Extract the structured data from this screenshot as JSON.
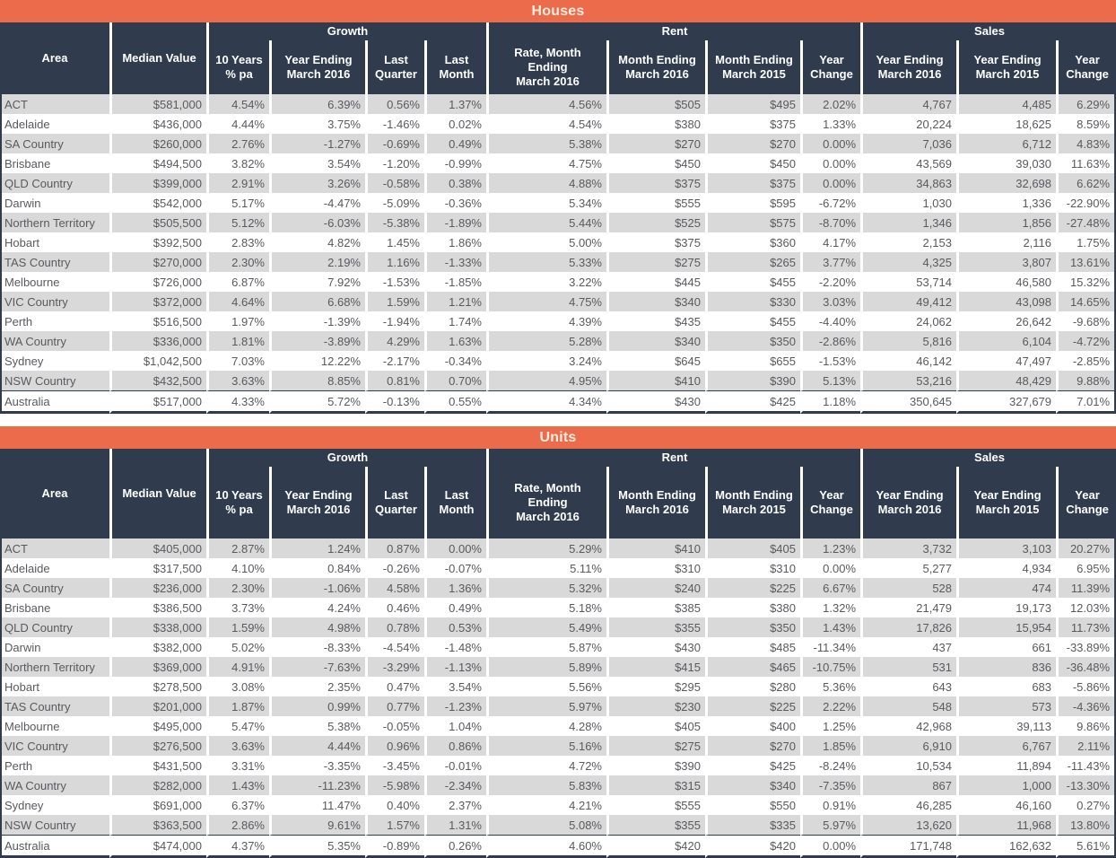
{
  "colors": {
    "accent_orange": "#EC6B4A",
    "header_dark": "#303C4E",
    "row_stripe": "#D9D9D9",
    "body_text": "#585A5E",
    "title_text": "#FAEDE0"
  },
  "tables": [
    {
      "title": "Houses",
      "groups": [
        {
          "label": "Growth",
          "colspan": 4
        },
        {
          "label": "Rent",
          "colspan": 4
        },
        {
          "label": "Sales",
          "colspan": 3
        }
      ],
      "columns": [
        "Area",
        "Median Value",
        "10 Years\n% pa",
        "Year Ending\nMarch 2016",
        "Last\nQuarter",
        "Last\nMonth",
        "Rate, Month\nEnding\nMarch 2016",
        "Month Ending\nMarch 2016",
        "Month Ending\nMarch 2015",
        "Year\nChange",
        "Year Ending\nMarch 2016",
        "Year Ending\nMarch 2015",
        "Year\nChange"
      ],
      "rows": [
        [
          "ACT",
          "$581,000",
          "4.54%",
          "6.39%",
          "0.56%",
          "1.37%",
          "4.56%",
          "$505",
          "$495",
          "2.02%",
          "4,767",
          "4,485",
          "6.29%"
        ],
        [
          "Adelaide",
          "$436,000",
          "4.44%",
          "3.75%",
          "-1.46%",
          "0.02%",
          "4.54%",
          "$380",
          "$375",
          "1.33%",
          "20,224",
          "18,625",
          "8.59%"
        ],
        [
          "SA Country",
          "$260,000",
          "2.76%",
          "-1.27%",
          "-0.69%",
          "0.49%",
          "5.38%",
          "$270",
          "$270",
          "0.00%",
          "7,036",
          "6,712",
          "4.83%"
        ],
        [
          "Brisbane",
          "$494,500",
          "3.82%",
          "3.54%",
          "-1.20%",
          "-0.99%",
          "4.75%",
          "$450",
          "$450",
          "0.00%",
          "43,569",
          "39,030",
          "11.63%"
        ],
        [
          "QLD Country",
          "$399,000",
          "2.91%",
          "3.26%",
          "-0.58%",
          "0.38%",
          "4.88%",
          "$375",
          "$375",
          "0.00%",
          "34,863",
          "32,698",
          "6.62%"
        ],
        [
          "Darwin",
          "$542,000",
          "5.17%",
          "-4.47%",
          "-5.09%",
          "-0.36%",
          "5.34%",
          "$555",
          "$595",
          "-6.72%",
          "1,030",
          "1,336",
          "-22.90%"
        ],
        [
          "Northern Territory",
          "$505,500",
          "5.12%",
          "-6.03%",
          "-5.38%",
          "-1.89%",
          "5.44%",
          "$525",
          "$575",
          "-8.70%",
          "1,346",
          "1,856",
          "-27.48%"
        ],
        [
          "Hobart",
          "$392,500",
          "2.83%",
          "4.82%",
          "1.45%",
          "1.86%",
          "5.00%",
          "$375",
          "$360",
          "4.17%",
          "2,153",
          "2,116",
          "1.75%"
        ],
        [
          "TAS Country",
          "$270,000",
          "2.30%",
          "2.19%",
          "1.16%",
          "-1.33%",
          "5.33%",
          "$275",
          "$265",
          "3.77%",
          "4,325",
          "3,807",
          "13.61%"
        ],
        [
          "Melbourne",
          "$726,000",
          "6.87%",
          "7.92%",
          "-1.53%",
          "-1.85%",
          "3.22%",
          "$445",
          "$455",
          "-2.20%",
          "53,714",
          "46,580",
          "15.32%"
        ],
        [
          "VIC Country",
          "$372,000",
          "4.64%",
          "6.68%",
          "1.59%",
          "1.21%",
          "4.75%",
          "$340",
          "$330",
          "3.03%",
          "49,412",
          "43,098",
          "14.65%"
        ],
        [
          "Perth",
          "$516,500",
          "1.97%",
          "-1.39%",
          "-1.94%",
          "1.74%",
          "4.39%",
          "$435",
          "$455",
          "-4.40%",
          "24,062",
          "26,642",
          "-9.68%"
        ],
        [
          "WA Country",
          "$336,000",
          "1.81%",
          "-3.89%",
          "4.29%",
          "1.63%",
          "5.28%",
          "$340",
          "$350",
          "-2.86%",
          "5,816",
          "6,104",
          "-4.72%"
        ],
        [
          "Sydney",
          "$1,042,500",
          "7.03%",
          "12.22%",
          "-2.17%",
          "-0.34%",
          "3.24%",
          "$645",
          "$655",
          "-1.53%",
          "46,142",
          "47,497",
          "-2.85%"
        ],
        [
          "NSW Country",
          "$432,500",
          "3.63%",
          "8.85%",
          "0.81%",
          "0.70%",
          "4.95%",
          "$410",
          "$390",
          "5.13%",
          "53,216",
          "48,429",
          "9.88%"
        ],
        [
          "Australia",
          "$517,000",
          "4.33%",
          "5.72%",
          "-0.13%",
          "0.55%",
          "4.34%",
          "$430",
          "$425",
          "1.18%",
          "350,645",
          "327,679",
          "7.01%"
        ]
      ]
    },
    {
      "title": "Units",
      "groups": [
        {
          "label": "Growth",
          "colspan": 4
        },
        {
          "label": "Rent",
          "colspan": 4
        },
        {
          "label": "Sales",
          "colspan": 3
        }
      ],
      "columns": [
        "Area",
        "Median Value",
        "10 Years\n% pa",
        "Year Ending\nMarch 2016",
        "Last\nQuarter",
        "Last\nMonth",
        "Rate, Month\nEnding\nMarch 2016",
        "Month Ending\nMarch 2016",
        "Month Ending\nMarch 2015",
        "Year\nChange",
        "Year Ending\nMarch 2016",
        "Year Ending\nMarch 2015",
        "Year\nChange"
      ],
      "rows": [
        [
          "ACT",
          "$405,000",
          "2.87%",
          "1.24%",
          "0.87%",
          "0.00%",
          "5.29%",
          "$410",
          "$405",
          "1.23%",
          "3,732",
          "3,103",
          "20.27%"
        ],
        [
          "Adelaide",
          "$317,500",
          "4.10%",
          "0.84%",
          "-0.26%",
          "-0.07%",
          "5.11%",
          "$310",
          "$310",
          "0.00%",
          "5,277",
          "4,934",
          "6.95%"
        ],
        [
          "SA Country",
          "$236,000",
          "2.30%",
          "-1.06%",
          "4.58%",
          "1.36%",
          "5.32%",
          "$240",
          "$225",
          "6.67%",
          "528",
          "474",
          "11.39%"
        ],
        [
          "Brisbane",
          "$386,500",
          "3.73%",
          "4.24%",
          "0.46%",
          "0.49%",
          "5.18%",
          "$385",
          "$380",
          "1.32%",
          "21,479",
          "19,173",
          "12.03%"
        ],
        [
          "QLD Country",
          "$338,000",
          "1.59%",
          "4.98%",
          "0.78%",
          "0.53%",
          "5.49%",
          "$355",
          "$350",
          "1.43%",
          "17,826",
          "15,954",
          "11.73%"
        ],
        [
          "Darwin",
          "$382,000",
          "5.02%",
          "-8.33%",
          "-4.54%",
          "-1.48%",
          "5.87%",
          "$430",
          "$485",
          "-11.34%",
          "437",
          "661",
          "-33.89%"
        ],
        [
          "Northern Territory",
          "$369,000",
          "4.91%",
          "-7.63%",
          "-3.29%",
          "-1.13%",
          "5.89%",
          "$415",
          "$465",
          "-10.75%",
          "531",
          "836",
          "-36.48%"
        ],
        [
          "Hobart",
          "$278,500",
          "3.08%",
          "2.35%",
          "0.47%",
          "3.54%",
          "5.56%",
          "$295",
          "$280",
          "5.36%",
          "643",
          "683",
          "-5.86%"
        ],
        [
          "TAS Country",
          "$201,000",
          "1.87%",
          "0.99%",
          "0.77%",
          "-1.23%",
          "5.97%",
          "$230",
          "$225",
          "2.22%",
          "548",
          "573",
          "-4.36%"
        ],
        [
          "Melbourne",
          "$495,000",
          "5.47%",
          "5.38%",
          "-0.05%",
          "1.04%",
          "4.28%",
          "$405",
          "$400",
          "1.25%",
          "42,968",
          "39,113",
          "9.86%"
        ],
        [
          "VIC Country",
          "$276,500",
          "3.63%",
          "4.44%",
          "0.96%",
          "0.86%",
          "5.16%",
          "$275",
          "$270",
          "1.85%",
          "6,910",
          "6,767",
          "2.11%"
        ],
        [
          "Perth",
          "$431,500",
          "3.31%",
          "-3.35%",
          "-3.45%",
          "-0.01%",
          "4.72%",
          "$390",
          "$425",
          "-8.24%",
          "10,534",
          "11,894",
          "-11.43%"
        ],
        [
          "WA Country",
          "$282,000",
          "1.43%",
          "-11.23%",
          "-5.98%",
          "-2.34%",
          "5.83%",
          "$315",
          "$340",
          "-7.35%",
          "867",
          "1,000",
          "-13.30%"
        ],
        [
          "Sydney",
          "$691,000",
          "6.37%",
          "11.47%",
          "0.40%",
          "2.37%",
          "4.21%",
          "$555",
          "$550",
          "0.91%",
          "46,285",
          "46,160",
          "0.27%"
        ],
        [
          "NSW Country",
          "$363,500",
          "2.86%",
          "9.61%",
          "1.57%",
          "1.31%",
          "5.08%",
          "$355",
          "$335",
          "5.97%",
          "13,620",
          "11,968",
          "13.80%"
        ],
        [
          "Australia",
          "$474,000",
          "4.37%",
          "5.35%",
          "-0.89%",
          "0.26%",
          "4.60%",
          "$420",
          "$420",
          "0.00%",
          "171,748",
          "162,632",
          "5.61%"
        ]
      ]
    }
  ]
}
